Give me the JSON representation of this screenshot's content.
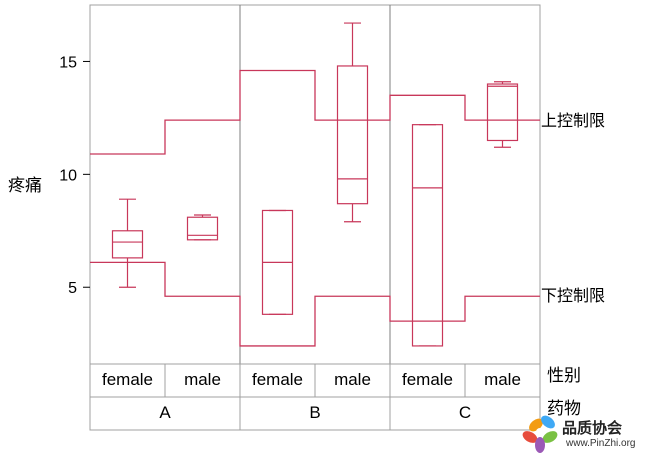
{
  "chart_data": {
    "type": "box",
    "ylabel": "疼痛",
    "ylim": [
      1.6,
      17.5
    ],
    "yticks": [
      5,
      10,
      15
    ],
    "level1_label": "性别",
    "level2_label": "药物",
    "limit_labels": {
      "upper": "上控制限",
      "lower": "下控制限"
    },
    "groups": [
      {
        "drug": "A",
        "gender": "female",
        "q1": 6.3,
        "median": 7.0,
        "q3": 7.5,
        "whisker_low": 5.0,
        "whisker_high": 8.9,
        "ucl": 10.9,
        "lcl": 6.1
      },
      {
        "drug": "A",
        "gender": "male",
        "q1": 7.1,
        "median": 7.3,
        "q3": 8.1,
        "whisker_low": 7.1,
        "whisker_high": 8.2,
        "ucl": 12.4,
        "lcl": 4.6
      },
      {
        "drug": "B",
        "gender": "female",
        "q1": 3.8,
        "median": 6.1,
        "q3": 8.4,
        "whisker_low": 3.8,
        "whisker_high": 8.4,
        "ucl": 14.6,
        "lcl": 2.4
      },
      {
        "drug": "B",
        "gender": "male",
        "q1": 8.7,
        "median": 9.8,
        "q3": 14.8,
        "whisker_low": 7.9,
        "whisker_high": 16.7,
        "ucl": 12.4,
        "lcl": 4.6
      },
      {
        "drug": "C",
        "gender": "female",
        "q1": 2.4,
        "median": 9.4,
        "q3": 12.2,
        "whisker_low": 2.4,
        "whisker_high": 12.2,
        "ucl": 13.5,
        "lcl": 3.5
      },
      {
        "drug": "C",
        "gender": "male",
        "q1": 11.5,
        "median": 13.9,
        "q3": 14.0,
        "whisker_low": 11.2,
        "whisker_high": 14.1,
        "ucl": 12.4,
        "lcl": 4.6
      }
    ],
    "colors": {
      "series": "#c8375a",
      "frame": "#a0a0a0",
      "separator": "#7f7f7f",
      "grid_bg": "#ffffff"
    }
  },
  "watermark": {
    "title": "品质协会",
    "url": "www.PinZhi.org"
  }
}
